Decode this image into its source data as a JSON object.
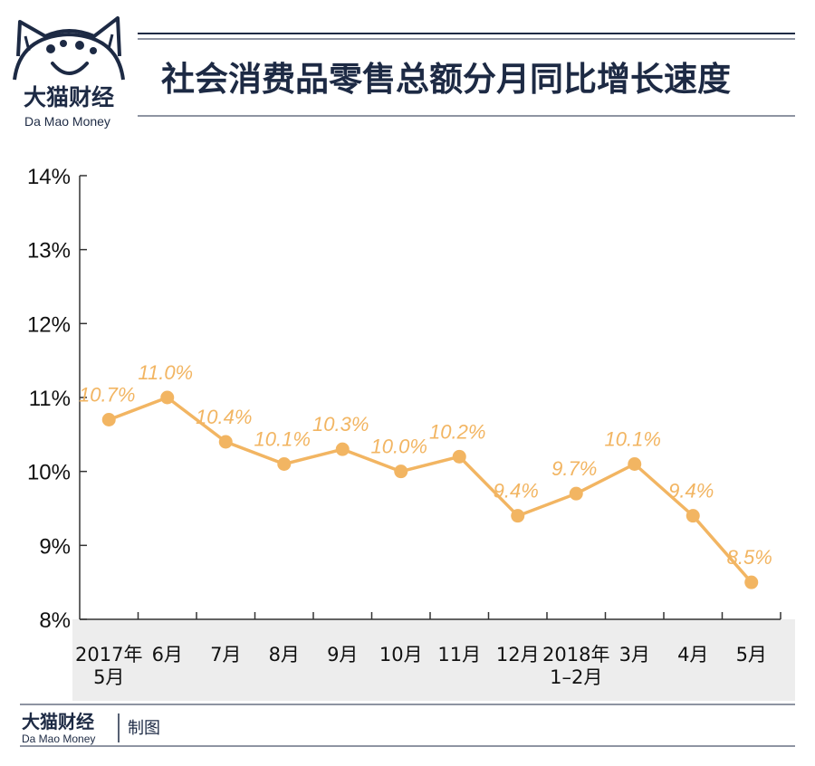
{
  "brand": {
    "name_cn": "大猫财经",
    "name_en": "Da Mao Money"
  },
  "title": "社会消费品零售总额分月同比增长速度",
  "footer": {
    "brand_cn": "大猫财经",
    "brand_en": "Da Mao Money",
    "credit": "制图"
  },
  "chart_data": {
    "type": "line",
    "categories": [
      "2017年5月",
      "6月",
      "7月",
      "8月",
      "9月",
      "10月",
      "11月",
      "12月",
      "2018年1–2月",
      "3月",
      "4月",
      "5月"
    ],
    "category_lines": [
      [
        "2017年",
        "5月"
      ],
      [
        "6月"
      ],
      [
        "7月"
      ],
      [
        "8月"
      ],
      [
        "9月"
      ],
      [
        "10月"
      ],
      [
        "11月"
      ],
      [
        "12月"
      ],
      [
        "2018年",
        "1–2月"
      ],
      [
        "3月"
      ],
      [
        "4月"
      ],
      [
        "5月"
      ]
    ],
    "series": [
      {
        "values": [
          10.7,
          11.0,
          10.4,
          10.1,
          10.3,
          10.0,
          10.2,
          9.4,
          9.7,
          10.1,
          9.4,
          8.5
        ],
        "labels": [
          "10.7%",
          "11.0%",
          "10.4%",
          "10.1%",
          "10.3%",
          "10.0%",
          "10.2%",
          "9.4%",
          "9.7%",
          "10.1%",
          "9.4%",
          "8.5%"
        ],
        "color": "#f2b562"
      }
    ],
    "yticks": [
      "14%",
      "13%",
      "12%",
      "11%",
      "10%",
      "9%",
      "8%"
    ],
    "ytick_values": [
      14,
      13,
      12,
      11,
      10,
      9,
      8
    ],
    "ylim": [
      8,
      14
    ],
    "grid": false,
    "category_band_color": "#ededed",
    "axis_color": "#333333"
  }
}
